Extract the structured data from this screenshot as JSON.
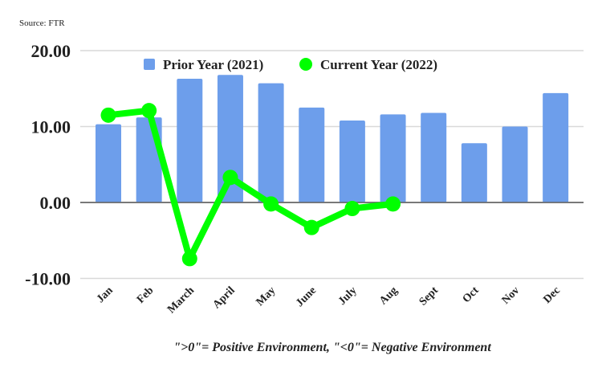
{
  "source_note": "Source: FTR",
  "footnote": "\">0\"= Positive Environment, \"<0\"= Negative Environment",
  "colors": {
    "prior_year": "#6d9eeb",
    "current_year": "#00ff00",
    "gridline": "#d9d9d9",
    "zero_line": "#666666",
    "text": "#222222"
  },
  "chart_data": {
    "type": "bar",
    "title": "",
    "xlabel": "",
    "ylabel": "",
    "categories": [
      "Jan",
      "Feb",
      "March",
      "April",
      "May",
      "June",
      "July",
      "Aug",
      "Sept",
      "Oct",
      "Nov",
      "Dec"
    ],
    "series": [
      {
        "name": "Prior Year (2021)",
        "type": "bar",
        "values": [
          10.3,
          11.2,
          16.3,
          16.8,
          15.7,
          12.5,
          10.8,
          11.6,
          11.8,
          7.8,
          10.0,
          14.4
        ]
      },
      {
        "name": "Current Year (2022)",
        "type": "line",
        "values": [
          11.5,
          12.1,
          -7.4,
          3.3,
          -0.2,
          -3.3,
          -0.8,
          -0.2,
          null,
          null,
          null,
          null
        ]
      }
    ],
    "ylim": [
      -10,
      20
    ],
    "yticks": [
      20,
      10,
      0,
      -10
    ],
    "ytick_labels": [
      "20.00",
      "10.00",
      "0.00",
      "-10.00"
    ],
    "grid": true,
    "legend_position": "top-center",
    "legend": [
      "Prior Year (2021)",
      "Current Year (2022)"
    ]
  }
}
